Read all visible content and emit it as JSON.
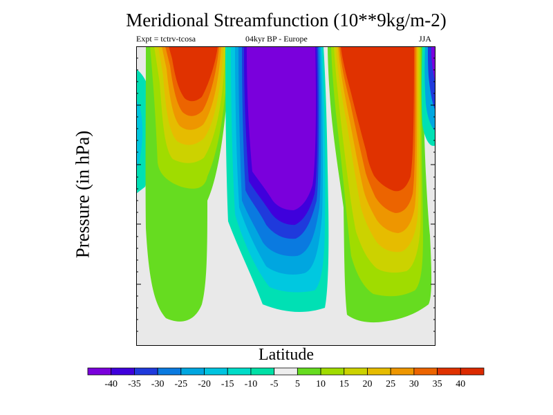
{
  "title": "Meridional Streamfunction (10**9kg/m-2)",
  "expt_label": "Expt = tctrv-tcosa",
  "region_label": "04kyr BP - Europe",
  "season_label": "JJA",
  "chart_data": {
    "type": "heatmap",
    "title": "Meridional Streamfunction (10**9kg/m-2)",
    "subtitle": "Expt = tctrv-tcosa   04kyr BP - Europe   JJA",
    "xlabel": "Latitude",
    "ylabel": "Pressure (in hPa)",
    "xticks_labels": [],
    "yticks_labels": [],
    "legend_position": "bottom",
    "colorbar": {
      "labels": [
        "-40",
        "-35",
        "-30",
        "-25",
        "-20",
        "-15",
        "-10",
        "-5",
        "5",
        "10",
        "15",
        "20",
        "25",
        "30",
        "35",
        "40"
      ],
      "colors": [
        "#7a00dc",
        "#3f00dc",
        "#1f3adc",
        "#0a7ae0",
        "#00a6e0",
        "#00c4e0",
        "#00dcc8",
        "#00e0a6",
        "#eeeeee",
        "#66dc20",
        "#a0dc00",
        "#ccd200",
        "#e6bc00",
        "#ee9600",
        "#ec6400",
        "#e03200",
        "#dc2a00"
      ]
    },
    "features": [
      {
        "name": "northern upper positive cell",
        "max_value": 40
      },
      {
        "name": "central negative cell",
        "min_value": -40
      },
      {
        "name": "southern upper positive cell",
        "max_value": 40
      },
      {
        "name": "left-edge weak negative cell",
        "min_value": -10
      },
      {
        "name": "right-edge negative cell",
        "min_value": -40
      }
    ]
  }
}
